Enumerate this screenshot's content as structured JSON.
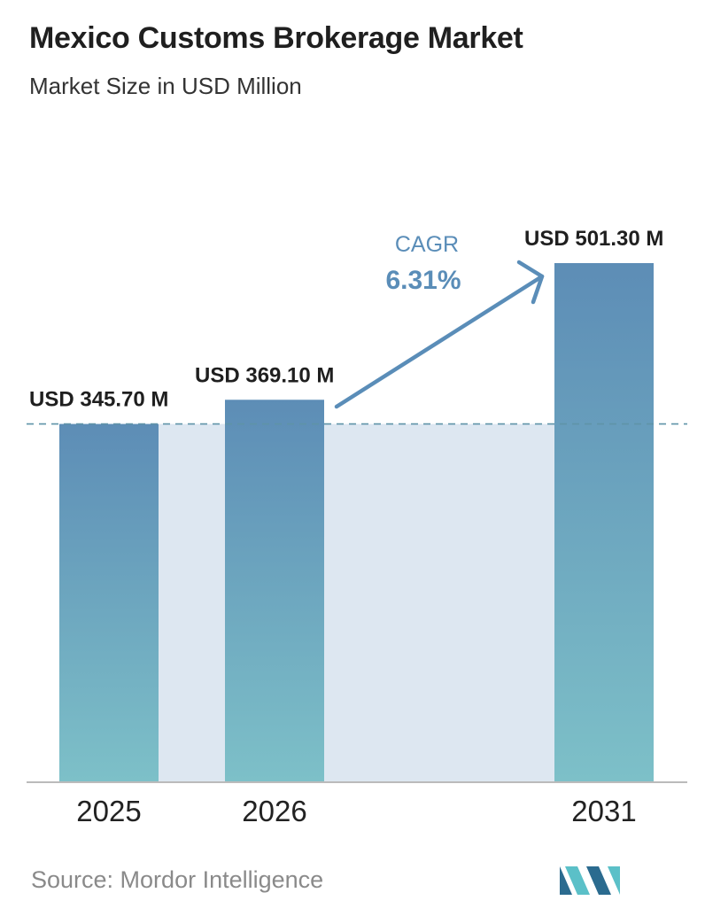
{
  "header": {
    "title": "Mexico Customs Brokerage Market",
    "subtitle": "Market Size in USD Million"
  },
  "chart_data": {
    "type": "bar",
    "title": "Mexico Customs Brokerage Market",
    "subtitle": "Market Size in USD Million",
    "categories": [
      "2025",
      "2026",
      "2031"
    ],
    "values": [
      345.7,
      369.1,
      501.3
    ],
    "data_labels": [
      "USD 345.70 M",
      "USD 369.10 M",
      "USD 501.30 M"
    ],
    "xlabel": "",
    "ylabel": "",
    "ylim": [
      0,
      630
    ],
    "grid": false,
    "reference_line": "dashed line at 2025 value",
    "annotation": {
      "label": "CAGR",
      "value": "6.31%"
    }
  },
  "colors": {
    "bar_top": "#5d8db6",
    "bar_bottom": "#7dc0c8",
    "band": "#dde7f1",
    "cagr": "#5a8db8",
    "dashed_line": "#5f93a8",
    "axis": "#bbbbbb",
    "logo_dark": "#2b6b8f",
    "logo_light": "#5bc0c8"
  },
  "footer": {
    "source": "Source:  Mordor Intelligence",
    "logo_icon": "mordor-intelligence-logo-icon"
  }
}
